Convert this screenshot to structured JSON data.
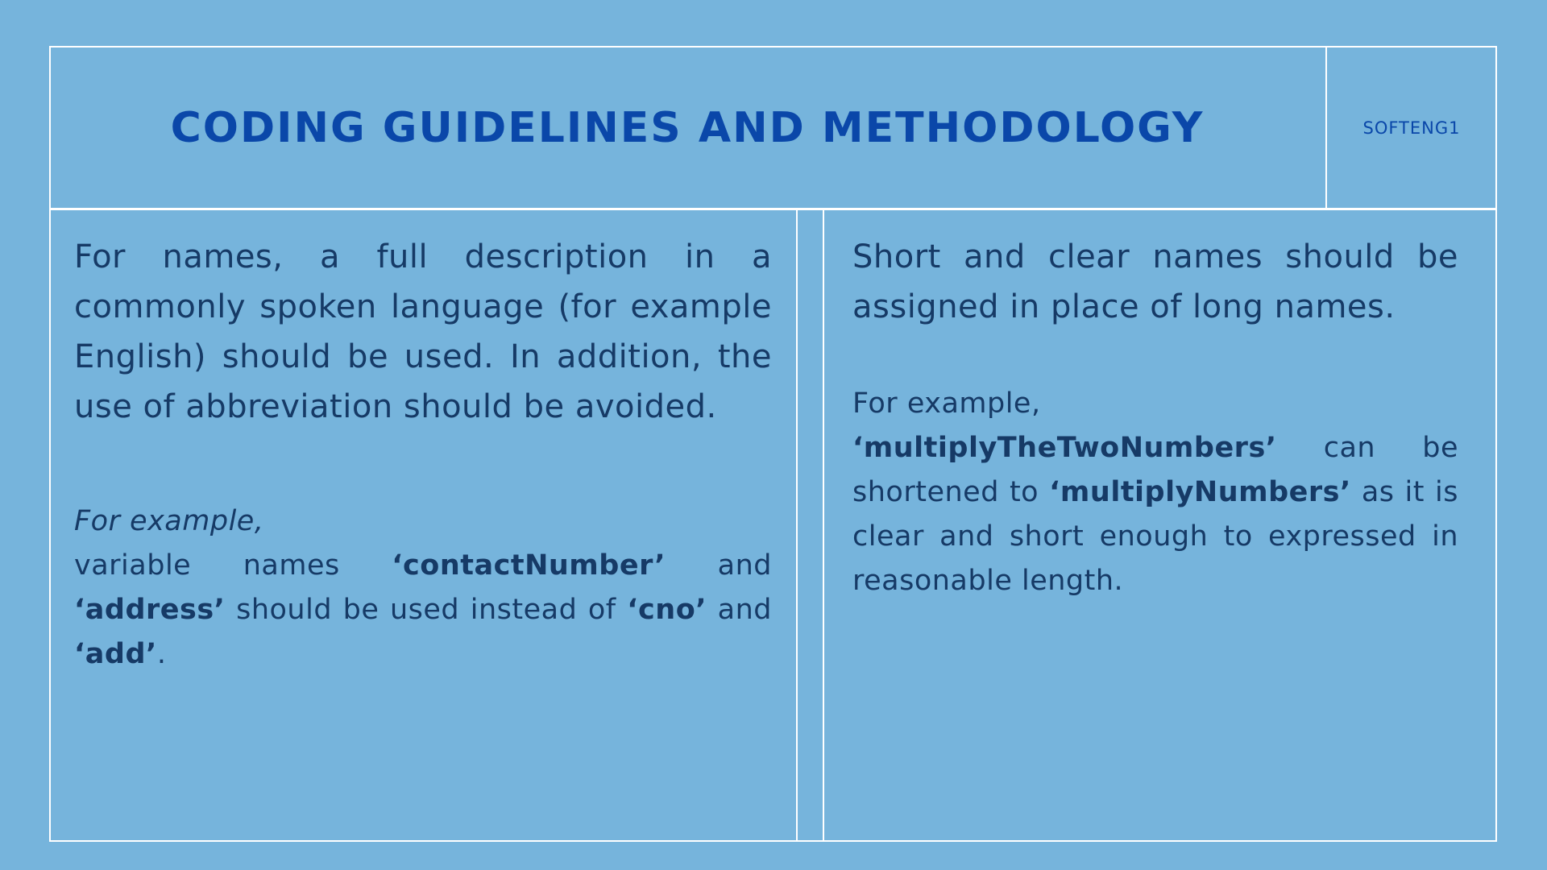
{
  "header": {
    "title": "CODING GUIDELINES AND METHODOLOGY",
    "course_code": "SOFTENG1"
  },
  "left_column": {
    "paragraph": "For names, a full description in a commonly spoken language (for example English) should be used. In addition, the use of abbreviation should be avoided.",
    "example": {
      "lead": "For example,",
      "text_1": "variable names ",
      "term_1": "‘contactNumber’",
      "text_2": " and ",
      "term_2": "‘address’",
      "text_3": " should be used instead of ",
      "term_3": "‘cno’",
      "text_4": " and ",
      "term_4": "‘add’",
      "text_5": "."
    }
  },
  "right_column": {
    "paragraph": "Short and clear names should be assigned in place of long names.",
    "example": {
      "lead": "For example,",
      "term_1": "‘multiplyTheTwoNumbers’",
      "text_1": " can be shortened to ",
      "term_2": "‘multiplyNumbers’",
      "text_2": " as it is clear and short enough to expressed in reasonable length."
    }
  },
  "colors": {
    "background": "#76b4dc",
    "title": "#0a47a9",
    "body_text": "#163a66",
    "frame_lines": "#ffffff"
  }
}
